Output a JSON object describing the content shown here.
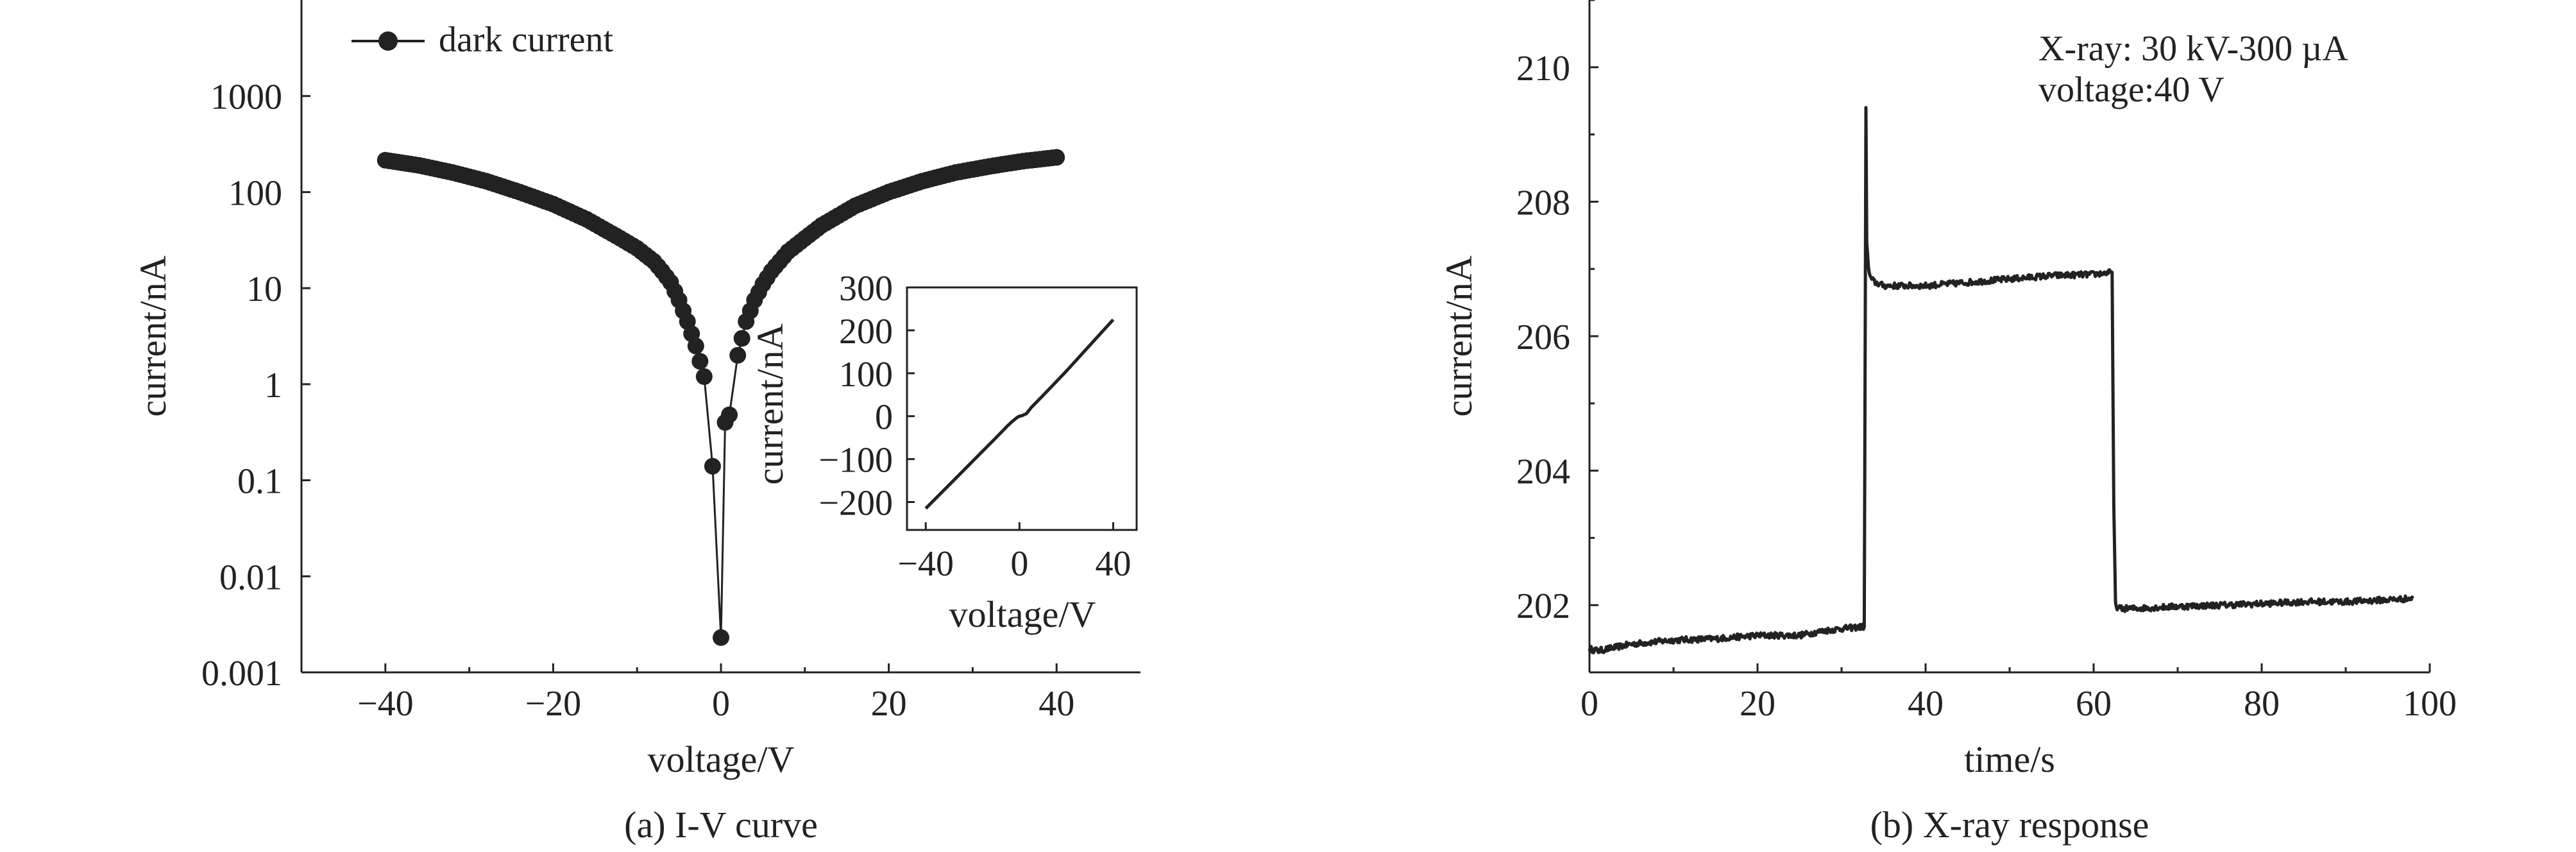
{
  "chart_data": [
    {
      "type": "scatter",
      "id": "iv",
      "caption": "(a) I-V curve",
      "xlabel": "voltage/V",
      "ylabel": "current/nA",
      "xlim": [
        -50,
        50
      ],
      "ylim": [
        0.001,
        10000
      ],
      "yscale": "log",
      "x_ticks": [
        -40,
        -20,
        0,
        20,
        40
      ],
      "x_tick_labels": [
        "−40",
        "−20",
        "0",
        "20",
        "40"
      ],
      "y_ticks": [
        0.001,
        0.01,
        0.1,
        1,
        10,
        100,
        1000
      ],
      "y_tick_labels": [
        "0.001",
        "0.01",
        "0.1",
        "1",
        "10",
        "100",
        "1000"
      ],
      "legend": {
        "label": "dark current",
        "position": "top-left"
      },
      "grid": false,
      "series": [
        {
          "name": "dark current",
          "x": [
            -40,
            -36,
            -32,
            -28,
            -24,
            -20,
            -16,
            -12,
            -10,
            -8,
            -7,
            -6,
            -5,
            -4,
            -3,
            -2,
            -1,
            0,
            0.5,
            1,
            2,
            3,
            4,
            5,
            6,
            7,
            8,
            10,
            12,
            16,
            20,
            24,
            28,
            32,
            36,
            40
          ],
          "y": [
            215,
            190,
            160,
            130,
            100,
            75,
            52,
            33,
            26,
            19,
            15,
            11.5,
            7.5,
            4.5,
            2.5,
            1.2,
            0.14,
            0.0023,
            0.4,
            0.48,
            2.0,
            4.5,
            7.5,
            11,
            15,
            19,
            24,
            33,
            45,
            72,
            100,
            130,
            160,
            185,
            210,
            230
          ]
        }
      ],
      "inset": {
        "type": "line",
        "xlabel": "voltage/V",
        "ylabel": "current/nA",
        "xlim": [
          -48,
          50
        ],
        "ylim": [
          -265,
          300
        ],
        "x_ticks": [
          -40,
          0,
          40
        ],
        "x_tick_labels": [
          "−40",
          "0",
          "40"
        ],
        "y_ticks": [
          -200,
          -100,
          0,
          100,
          200,
          300
        ],
        "y_tick_labels": [
          "−200",
          "−100",
          "0",
          "100",
          "200",
          "300"
        ],
        "x": [
          -40,
          -30,
          -20,
          -10,
          -5,
          -3,
          -1,
          0,
          1,
          3,
          5,
          10,
          20,
          30,
          40
        ],
        "y": [
          -215,
          -160,
          -105,
          -50,
          -22,
          -12,
          -3,
          0,
          1,
          6,
          20,
          48,
          105,
          165,
          225
        ]
      }
    },
    {
      "type": "line",
      "id": "xray",
      "caption": "(b) X-ray response",
      "xlabel": "time/s",
      "ylabel": "current/nA",
      "xlim": [
        0,
        100
      ],
      "ylim": [
        201,
        211
      ],
      "x_ticks": [
        0,
        20,
        40,
        60,
        80,
        100
      ],
      "x_tick_labels": [
        "0",
        "20",
        "40",
        "60",
        "80",
        "100"
      ],
      "y_ticks": [
        202,
        204,
        206,
        208,
        210
      ],
      "y_tick_labels": [
        "202",
        "204",
        "206",
        "208",
        "210"
      ],
      "annotations": [
        "X-ray: 30 kV-300 µA",
        "voltage:40 V"
      ],
      "grid": false,
      "series": [
        {
          "name": "",
          "x": [
            0,
            1,
            5,
            10,
            15,
            20,
            25,
            28,
            30,
            32.7,
            32.9,
            33.0,
            33.2,
            33.5,
            34,
            35,
            40,
            45,
            50,
            55,
            60,
            62.2,
            62.4,
            62.6,
            63,
            65,
            70,
            75,
            80,
            85,
            90,
            95,
            98
          ],
          "y": [
            201.35,
            201.32,
            201.42,
            201.48,
            201.5,
            201.55,
            201.55,
            201.62,
            201.65,
            201.68,
            209.4,
            207.4,
            207.0,
            206.85,
            206.8,
            206.75,
            206.75,
            206.8,
            206.85,
            206.9,
            206.92,
            206.95,
            203.5,
            202.0,
            201.95,
            201.95,
            201.98,
            202.0,
            202.02,
            202.05,
            202.05,
            202.08,
            202.1
          ]
        }
      ]
    }
  ]
}
